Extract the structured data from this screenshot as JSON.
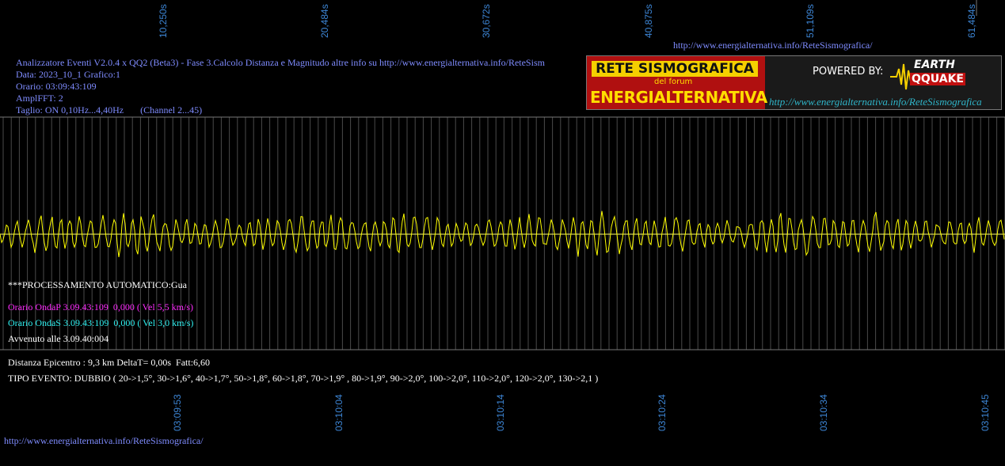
{
  "top_url": "http://www.energialternativa.info/ReteSismografica/",
  "header": [
    "Analizzatore Eventi V2.0.4 x QQ2 (Beta3) - Fase 3.Calcolo Distanza e Magnitudo altre info su http://www.energialternativa.info/ReteSism",
    "Data: 2023_10_1 Grafico:1",
    "Orario: 03:09:43:109",
    "AmplFFT: 2",
    "Taglio: ON 0,10Hz...4,40Hz       (Channel 2...45)"
  ],
  "logo": {
    "title": "RETE SISMOGRAFICA",
    "subtitle": "del forum",
    "name": "ENERGIALTERNATIVA",
    "powered": "POWERED BY:",
    "brand_top": "EARTH",
    "brand_bottom": "QQUAKE",
    "url": "http://www.energialternativa.info/ReteSismografica"
  },
  "top_times": [
    "10,250s",
    "20,484s",
    "30,672s",
    "40,875s",
    "51,109s",
    "61,484s"
  ],
  "bottom_times": [
    "03:09:53",
    "03:10:04",
    "03:10:14",
    "03:10:24",
    "03:10:34",
    "03:10:45"
  ],
  "info": {
    "process": "***PROCESSAMENTO AUTOMATICO:Gua",
    "onda_p": "Orario OndaP 3.09.43:109  0,000 ( Vel 5,5 km/s)",
    "onda_s": "Orario OndaS 3.09.43:109  0,000 ( Vel 3,0 km/s)",
    "avvenuto": "Avvenuto alle 3.09.40:004",
    "distanza": "Distanza Epicentro : 9,3 km DeltaT= 0,00s  Fatt:6,60",
    "tipo": "TIPO EVENTO: DUBBIO ( 20->1,5°, 30->1,6°, 40->1,7°, 50->1,8°, 60->1,8°, 70->1,9° , 80->1,9°, 90->2,0°, 100->2,0°, 110->2,0°, 120->2,0°, 130->2,1 )"
  },
  "footer_url": "http://www.energialternativa.info/ReteSismografica/"
}
